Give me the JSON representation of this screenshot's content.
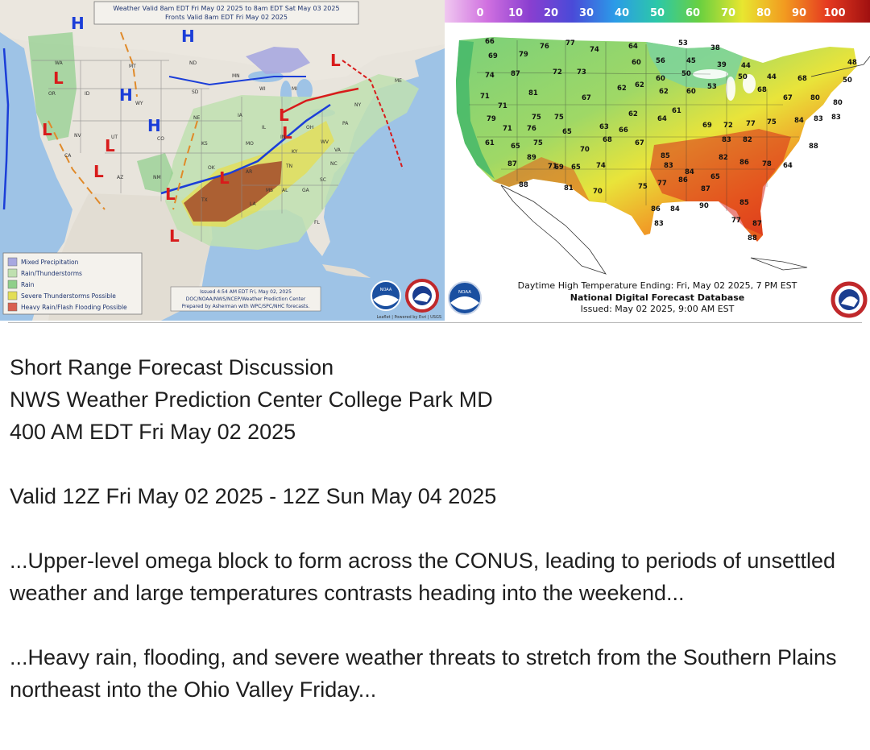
{
  "left_map": {
    "title_line1": "Weather Valid 8am EDT Fri May 02 2025 to 8am EDT Sat May 03 2025",
    "title_line2": "Fronts Valid 8am EDT Fri May 02 2025",
    "legend": [
      {
        "label": "Mixed Precipitation",
        "color": "#a8a8e0"
      },
      {
        "label": "Rain/Thunderstorms",
        "color": "#bfe0b0"
      },
      {
        "label": "Rain",
        "color": "#8fcf8a"
      },
      {
        "label": "Severe Thunderstorms Possible",
        "color": "#e3de55"
      },
      {
        "label": "Heavy Rain/Flash Flooding Possible",
        "color": "#d9604f"
      }
    ],
    "issued_line1": "Issued 4:54 AM EDT  Fri, May 02, 2025",
    "issued_line2": "DOC/NOAA/NWS/NCEP/Weather Prediction Center",
    "issued_line3": "Prepared by Asherman with WPC/SPC/NHC forecasts.",
    "attribution": "Leaflet | Powered by Esri | USGS",
    "pressure_highs": [
      "H",
      "H",
      "H",
      "H"
    ],
    "pressure_lows": [
      "L",
      "L",
      "L",
      "L",
      "L",
      "L",
      "L",
      "L",
      "L",
      "L"
    ],
    "state_labels": [
      "WA",
      "OR",
      "ID",
      "MT",
      "WY",
      "NV",
      "UT",
      "CO",
      "AZ",
      "NM",
      "ND",
      "SD",
      "NE",
      "KS",
      "OK",
      "TX",
      "MN",
      "IA",
      "MO",
      "AR",
      "LA",
      "WI",
      "IL",
      "MI",
      "IN",
      "OH",
      "KY",
      "TN",
      "MS",
      "AL",
      "GA",
      "FL",
      "SC",
      "NC",
      "VA",
      "WV",
      "PA",
      "NY",
      "ME",
      "CA"
    ]
  },
  "right_map": {
    "colorbar_ticks": [
      "0",
      "10",
      "20",
      "30",
      "40",
      "50",
      "60",
      "70",
      "80",
      "90",
      "100"
    ],
    "temps": [
      "53",
      "66",
      "69",
      "79",
      "76",
      "77",
      "74",
      "64",
      "38",
      "45",
      "39",
      "44",
      "48",
      "74",
      "87",
      "72",
      "73",
      "60",
      "56",
      "50",
      "60",
      "53",
      "50",
      "44",
      "68",
      "50",
      "71",
      "81",
      "67",
      "62",
      "62",
      "62",
      "60",
      "68",
      "67",
      "80",
      "80",
      "71",
      "75",
      "75",
      "62",
      "61",
      "64",
      "69",
      "72",
      "77",
      "75",
      "84",
      "83",
      "83",
      "79",
      "71",
      "76",
      "65",
      "63",
      "66",
      "83",
      "82",
      "61",
      "65",
      "75",
      "68",
      "67",
      "88",
      "87",
      "89",
      "69",
      "70",
      "85",
      "82",
      "86",
      "78",
      "64",
      "71",
      "65",
      "74",
      "83",
      "84",
      "65",
      "88",
      "81",
      "70",
      "75",
      "77",
      "86",
      "87",
      "85",
      "86",
      "84",
      "90",
      "77",
      "87",
      "83",
      "88"
    ],
    "caption_line1": "Daytime High Temperature Ending: Fri, May 02 2025, 7 PM EST",
    "caption_line2": "National Digital Forecast Database",
    "caption_line3": "Issued: May 02 2025, 9:00 AM EST"
  },
  "logos": {
    "noaa": "NOAA",
    "nws": "NATIONAL WEATHER SERVICE"
  },
  "discussion": {
    "line1": "Short Range Forecast Discussion",
    "line2": "NWS Weather Prediction Center College Park MD",
    "line3": "400 AM EDT Fri May 02 2025",
    "valid": "Valid 12Z Fri May 02 2025 - 12Z Sun May 04 2025",
    "headline1": "...Upper-level omega block to form across the CONUS, leading to periods of unsettled weather and large temperatures contrasts heading into the weekend...",
    "headline2": "...Heavy rain, flooding, and severe weather threats to stretch from the Southern Plains northeast into the Ohio Valley Friday..."
  }
}
